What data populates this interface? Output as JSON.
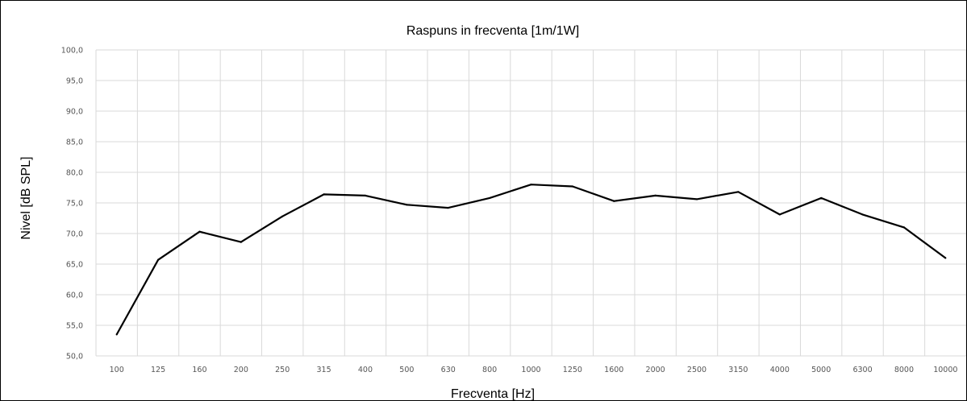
{
  "chart_data": {
    "type": "line",
    "title": "Raspuns in frecventa [1m/1W]",
    "xlabel": "Frecventa [Hz]",
    "ylabel": "Nivel [dB SPL]",
    "categories": [
      "100",
      "125",
      "160",
      "200",
      "250",
      "315",
      "400",
      "500",
      "630",
      "800",
      "1000",
      "1250",
      "1600",
      "2000",
      "2500",
      "3150",
      "4000",
      "5000",
      "6300",
      "8000",
      "10000"
    ],
    "series": [
      {
        "values": [
          53.5,
          65.7,
          70.3,
          68.6,
          72.8,
          76.4,
          76.2,
          74.7,
          74.2,
          75.8,
          78.0,
          77.7,
          75.3,
          76.2,
          75.6,
          76.8,
          73.1,
          75.8,
          73.1,
          71.0,
          66.0
        ]
      }
    ],
    "ylim": [
      50,
      100
    ],
    "yticks": [
      "50,0",
      "55,0",
      "60,0",
      "65,0",
      "70,0",
      "75,0",
      "80,0",
      "85,0",
      "90,0",
      "95,0",
      "100,0"
    ],
    "grid": true,
    "legend": "none",
    "line_color": "#000000"
  }
}
